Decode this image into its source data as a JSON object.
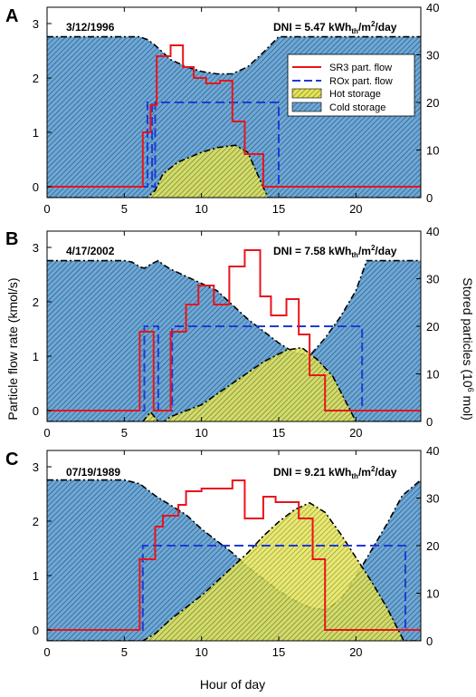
{
  "figure": {
    "ylabel_left": "Particle flow rate (kmol/s)",
    "ylabel_right_main": "Stored particles (10",
    "ylabel_right_sup": "6",
    "ylabel_right_tail": " mol)",
    "xlabel": "Hour of day"
  },
  "legend": {
    "sr3": "SR3 part. flow",
    "rox": "ROx part. flow",
    "hot": "Hot storage",
    "cold": "Cold storage"
  },
  "colors": {
    "sr3": "#e8141c",
    "rox": "#1f3bd6",
    "hot": "#d4d636",
    "cold": "#4a90c8",
    "frame": "#000000"
  },
  "chart_data": [
    {
      "type": "line",
      "panel": "A",
      "date": "3/12/1996",
      "dni_prefix": "DNI = 5.47 kWh",
      "dni_sub": "th",
      "dni_mid": "/m",
      "dni_sup": "2",
      "dni_suffix": "/day",
      "xlim": [
        0,
        24.2
      ],
      "xticks": [
        0,
        5,
        10,
        15,
        20
      ],
      "ylim_left": [
        -0.2,
        3.3
      ],
      "yticks_left": [
        0,
        1,
        2,
        3
      ],
      "ylim_right": [
        0,
        40
      ],
      "yticks_right": [
        0,
        10,
        20,
        30,
        40
      ],
      "series": [
        {
          "name": "SR3 part. flow",
          "axis": "left",
          "x": [
            0,
            6.2,
            6.2,
            6.7,
            6.7,
            7.1,
            7.1,
            8,
            8,
            8.8,
            8.8,
            9.5,
            9.5,
            10.3,
            10.3,
            11.2,
            11.2,
            12,
            12,
            12.8,
            12.8,
            14,
            14,
            24.2
          ],
          "y": [
            0,
            0,
            1,
            1,
            1.5,
            1.5,
            2.4,
            2.4,
            2.6,
            2.6,
            2.2,
            2.2,
            2.0,
            2.0,
            1.9,
            1.9,
            1.95,
            1.95,
            1.2,
            1.2,
            0.6,
            0.6,
            0,
            0
          ]
        },
        {
          "name": "ROx part. flow",
          "axis": "left",
          "x": [
            0,
            6.5,
            6.5,
            6.8,
            6.8,
            7.0,
            7.0,
            7.2,
            7.2,
            15,
            15,
            24.2
          ],
          "y": [
            0,
            0,
            1.55,
            1.55,
            0,
            0,
            1.55,
            1.55,
            1.55,
            1.55,
            0,
            0
          ]
        },
        {
          "name": "Hot storage",
          "axis": "right",
          "x": [
            0,
            6.5,
            7,
            7.5,
            8.5,
            10,
            11,
            12.2,
            13,
            14.3,
            24.2
          ],
          "y": [
            0,
            0,
            1.5,
            5,
            7.5,
            9.5,
            10.5,
            11,
            9.5,
            0,
            0
          ]
        },
        {
          "name": "Cold storage",
          "axis": "right",
          "x": [
            0,
            6,
            6.5,
            7,
            7.5,
            8,
            9,
            10,
            11,
            12,
            13,
            14,
            15,
            24.2
          ],
          "y": [
            33.8,
            33.8,
            33.2,
            32,
            30.5,
            29,
            27.5,
            26.5,
            26,
            26,
            27.5,
            30.5,
            33.8,
            33.8
          ]
        }
      ]
    },
    {
      "type": "line",
      "panel": "B",
      "date": "4/17/2002",
      "dni_prefix": "DNI = 7.58 kWh",
      "dni_sub": "th",
      "dni_mid": "/m",
      "dni_sup": "2",
      "dni_suffix": "/day",
      "xlim": [
        0,
        24.2
      ],
      "xticks": [
        0,
        5,
        10,
        15,
        20
      ],
      "ylim_left": [
        -0.2,
        3.3
      ],
      "yticks_left": [
        0,
        1,
        2,
        3
      ],
      "ylim_right": [
        0,
        40
      ],
      "yticks_right": [
        0,
        10,
        20,
        30,
        40
      ],
      "series": [
        {
          "name": "SR3 part. flow",
          "axis": "left",
          "x": [
            0,
            6,
            6,
            6.9,
            6.9,
            7.2,
            7.2,
            8,
            8,
            9,
            9,
            9.8,
            9.8,
            10.8,
            10.8,
            11.8,
            11.8,
            12.8,
            12.8,
            13.8,
            13.8,
            14.5,
            14.5,
            15.5,
            15.5,
            16.3,
            16.3,
            17,
            17,
            18,
            18,
            24.2
          ],
          "y": [
            0,
            0,
            1.45,
            1.45,
            0,
            0,
            0,
            0,
            1.45,
            1.45,
            1.95,
            1.95,
            2.3,
            2.3,
            1.95,
            1.95,
            2.65,
            2.65,
            2.95,
            2.95,
            2.1,
            2.1,
            1.75,
            1.75,
            2.05,
            2.05,
            1.4,
            1.4,
            0.65,
            0.65,
            0,
            0
          ]
        },
        {
          "name": "ROx part. flow",
          "axis": "left",
          "x": [
            0,
            6.3,
            6.3,
            6.9,
            6.9,
            7.2,
            7.2,
            8.1,
            8.1,
            20.4,
            20.4,
            24.2
          ],
          "y": [
            0,
            0,
            1.55,
            1.55,
            1.55,
            1.55,
            0,
            0,
            1.55,
            1.55,
            0,
            0
          ]
        },
        {
          "name": "Hot storage",
          "axis": "right",
          "x": [
            0,
            6.2,
            6.7,
            7.2,
            7.6,
            8,
            10,
            12,
            14,
            15.5,
            16.5,
            17.5,
            18.5,
            20,
            24.2
          ],
          "y": [
            0,
            0,
            2,
            0,
            0,
            1,
            3.5,
            8,
            12.5,
            15,
            15.5,
            13,
            9.5,
            0,
            0
          ]
        },
        {
          "name": "Cold storage",
          "axis": "right",
          "x": [
            0,
            5,
            5.5,
            6,
            6.3,
            6.7,
            7.2,
            7.5,
            8,
            9,
            10,
            11,
            12,
            13,
            14,
            15,
            16,
            17,
            18,
            19,
            20,
            20.7,
            24.2
          ],
          "y": [
            33.8,
            33.8,
            33.5,
            32.5,
            32.2,
            33,
            33.8,
            33,
            32,
            30.5,
            29,
            27.5,
            24.5,
            21.5,
            19,
            16.5,
            14.5,
            13.8,
            17.5,
            22,
            27.5,
            33.8,
            33.8
          ]
        }
      ]
    },
    {
      "type": "line",
      "panel": "C",
      "date": "07/19/1989",
      "dni_prefix": "DNI = 9.21 kWh",
      "dni_sub": "th",
      "dni_mid": "/m",
      "dni_sup": "2",
      "dni_suffix": "/day",
      "xlim": [
        0,
        24.2
      ],
      "xticks": [
        0,
        5,
        10,
        15,
        20
      ],
      "ylim_left": [
        -0.2,
        3.3
      ],
      "yticks_left": [
        0,
        1,
        2,
        3
      ],
      "ylim_right": [
        0,
        40
      ],
      "yticks_right": [
        0,
        10,
        20,
        30,
        40
      ],
      "xlabels_shown": true,
      "series": [
        {
          "name": "SR3 part. flow",
          "axis": "left",
          "x": [
            0,
            6,
            6,
            7,
            7,
            7.5,
            7.5,
            8.5,
            8.5,
            9,
            9,
            10,
            10,
            11,
            11,
            12,
            12,
            12.8,
            12.8,
            14,
            14,
            14.8,
            14.8,
            15.7,
            15.7,
            16.3,
            16.3,
            17.2,
            17.2,
            18,
            18,
            24.2
          ],
          "y": [
            0,
            0,
            1.3,
            1.3,
            1.9,
            1.9,
            2.1,
            2.1,
            2.3,
            2.3,
            2.55,
            2.55,
            2.6,
            2.6,
            2.6,
            2.6,
            2.75,
            2.75,
            2.05,
            2.05,
            2.45,
            2.45,
            2.35,
            2.35,
            2.35,
            2.35,
            2.05,
            2.05,
            1.3,
            1.3,
            0,
            0
          ]
        },
        {
          "name": "ROx part. flow",
          "axis": "left",
          "x": [
            0,
            6.2,
            6.2,
            23.2,
            23.2,
            24.2
          ],
          "y": [
            0,
            0,
            1.55,
            1.55,
            0,
            0
          ]
        },
        {
          "name": "Hot storage",
          "axis": "right",
          "x": [
            0,
            6.2,
            7,
            8,
            9,
            10,
            11,
            12,
            13,
            14,
            15,
            16,
            17,
            18,
            19,
            20,
            21,
            22,
            23.1,
            24.2
          ],
          "y": [
            0,
            0,
            1.5,
            4.5,
            7,
            9.5,
            12.5,
            15.5,
            18.5,
            22,
            25,
            27.5,
            29,
            27,
            22.5,
            17.5,
            12.5,
            7,
            0,
            0
          ]
        },
        {
          "name": "Cold storage",
          "axis": "right",
          "x": [
            0,
            5,
            6,
            7,
            8,
            9,
            10,
            11,
            12,
            13,
            14,
            15,
            16,
            17,
            18,
            19,
            20,
            21,
            22,
            23,
            24.2
          ],
          "y": [
            33.8,
            33.8,
            33,
            30.5,
            28.5,
            26.5,
            23.5,
            21,
            18.5,
            15.5,
            13,
            10.5,
            8.5,
            7,
            6.5,
            8.5,
            13.5,
            19,
            24.5,
            30.5,
            33.8
          ]
        }
      ]
    }
  ]
}
